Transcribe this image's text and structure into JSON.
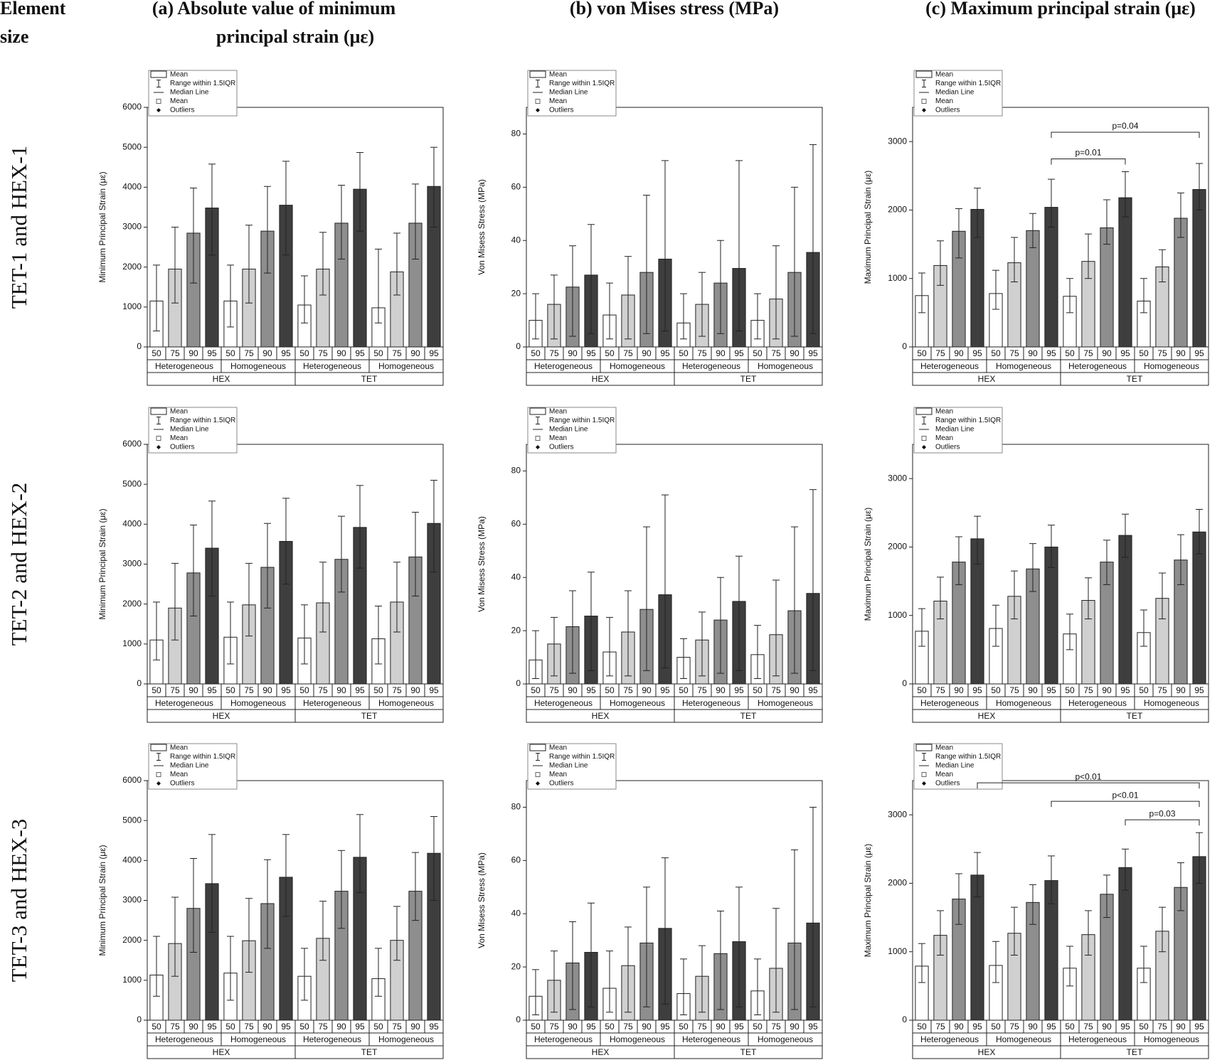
{
  "figure": {
    "corner": [
      "Element",
      "size"
    ],
    "columns": [
      [
        "(a) Absolute value of minimum",
        "principal strain (με)"
      ],
      [
        "(b) von Mises stress (MPa)"
      ],
      [
        "(c) Maximum principal strain (με)"
      ]
    ],
    "rows": [
      "TET-1 and HEX-1",
      "TET-2 and HEX-2",
      "TET-3 and HEX-3"
    ]
  },
  "chart_data": [
    {
      "type": "bar",
      "y_label": "Minimum Principal Strain (με)",
      "categories": [
        "50",
        "75",
        "90",
        "95",
        "50",
        "75",
        "90",
        "95",
        "50",
        "75",
        "90",
        "95",
        "50",
        "75",
        "90",
        "95"
      ],
      "groups": [
        "Heterogeneous",
        "Homogeneous",
        "Heterogeneous",
        "Homogeneous"
      ],
      "supergroups": [
        "HEX",
        "TET"
      ],
      "legend": [
        "Mean",
        "Range within 1.5IQR",
        "Median Line",
        "Mean",
        "Outliers"
      ],
      "bar_colors": [
        "#ffffff",
        "#d0d0d0",
        "#8e8e8e",
        "#3e3e3e"
      ],
      "values": [
        1150,
        1950,
        2850,
        3480,
        1150,
        1950,
        2900,
        3550,
        1050,
        1950,
        3100,
        3950,
        980,
        1880,
        3100,
        4020
      ],
      "whisker_high": [
        2050,
        3000,
        3980,
        4580,
        2050,
        3050,
        4020,
        4650,
        1780,
        2870,
        4050,
        4870,
        2450,
        2850,
        4080,
        5000
      ],
      "whisker_low": [
        400,
        1100,
        1600,
        2300,
        500,
        1100,
        1850,
        2300,
        600,
        1300,
        2200,
        2900,
        600,
        1300,
        2200,
        3000
      ],
      "ylim": [
        0,
        6000
      ],
      "yticks": [
        0,
        1000,
        2000,
        3000,
        4000,
        5000,
        6000
      ],
      "annotations": []
    },
    {
      "type": "bar",
      "y_label": "Von Misess Stress (MPa)",
      "categories": [
        "50",
        "75",
        "90",
        "95",
        "50",
        "75",
        "90",
        "95",
        "50",
        "75",
        "90",
        "95",
        "50",
        "75",
        "90",
        "95"
      ],
      "groups": [
        "Heterogeneous",
        "Homogeneous",
        "Heterogeneous",
        "Homogeneous"
      ],
      "supergroups": [
        "HEX",
        "TET"
      ],
      "legend": [
        "Mean",
        "Range within 1.5IQR",
        "Median Line",
        "Mean",
        "Outliers"
      ],
      "bar_colors": [
        "#ffffff",
        "#d0d0d0",
        "#8e8e8e",
        "#3e3e3e"
      ],
      "values": [
        10,
        16,
        22.5,
        27,
        12,
        19.5,
        28,
        33,
        9,
        16,
        24,
        29.5,
        10,
        18,
        28,
        35.5
      ],
      "whisker_high": [
        20,
        27,
        38,
        46,
        24,
        34,
        57,
        70,
        20,
        28,
        40,
        70,
        20,
        38,
        60,
        76
      ],
      "whisker_low": [
        3,
        3,
        4,
        5,
        3,
        3,
        5,
        6,
        3,
        4,
        5,
        6,
        3,
        3,
        4,
        5
      ],
      "ylim": [
        0,
        90
      ],
      "yticks": [
        0,
        20,
        40,
        60,
        80
      ],
      "annotations": []
    },
    {
      "type": "bar",
      "y_label": "Maximum Principal Strain (με)",
      "categories": [
        "50",
        "75",
        "90",
        "95",
        "50",
        "75",
        "90",
        "95",
        "50",
        "75",
        "90",
        "95",
        "50",
        "75",
        "90",
        "95"
      ],
      "groups": [
        "Heterogeneous",
        "Homogeneous",
        "Heterogeneous",
        "Homogeneous"
      ],
      "supergroups": [
        "HEX",
        "TET"
      ],
      "legend": [
        "Mean",
        "Range within 1.5IQR",
        "Median Line",
        "Mean",
        "Outliers"
      ],
      "bar_colors": [
        "#ffffff",
        "#d0d0d0",
        "#8e8e8e",
        "#3e3e3e"
      ],
      "values": [
        750,
        1190,
        1690,
        2010,
        780,
        1230,
        1700,
        2040,
        740,
        1250,
        1740,
        2180,
        670,
        1170,
        1880,
        2300
      ],
      "whisker_high": [
        1080,
        1550,
        2020,
        2320,
        1120,
        1600,
        1950,
        2450,
        1000,
        1650,
        2150,
        2560,
        1000,
        1420,
        2250,
        2680
      ],
      "whisker_low": [
        500,
        900,
        1300,
        1600,
        550,
        950,
        1450,
        1750,
        500,
        1000,
        1500,
        1900,
        500,
        950,
        1600,
        2000
      ],
      "ylim": [
        0,
        3500
      ],
      "yticks": [
        0,
        1000,
        2000,
        3000
      ],
      "annotations": [
        {
          "text": "p=0.04",
          "from": 7,
          "to": 15
        },
        {
          "text": "p=0.01",
          "from": 7,
          "to": 11
        }
      ]
    },
    {
      "type": "bar",
      "y_label": "Minimum Principal Strain (με)",
      "categories": [
        "50",
        "75",
        "90",
        "95",
        "50",
        "75",
        "90",
        "95",
        "50",
        "75",
        "90",
        "95",
        "50",
        "75",
        "90",
        "95"
      ],
      "groups": [
        "Heterogeneous",
        "Homogeneous",
        "Heterogeneous",
        "Homogeneous"
      ],
      "supergroups": [
        "HEX",
        "TET"
      ],
      "legend": [
        "Mean",
        "Range within 1.5IQR",
        "Median Line",
        "Mean",
        "Outliers"
      ],
      "bar_colors": [
        "#ffffff",
        "#d0d0d0",
        "#8e8e8e",
        "#3e3e3e"
      ],
      "values": [
        1100,
        1900,
        2780,
        3400,
        1170,
        1980,
        2920,
        3570,
        1150,
        2030,
        3120,
        3920,
        1130,
        2050,
        3180,
        4020
      ],
      "whisker_high": [
        2050,
        3020,
        3980,
        4580,
        2050,
        3020,
        4020,
        4650,
        1980,
        3050,
        4200,
        4970,
        1950,
        3050,
        4300,
        5100
      ],
      "whisker_low": [
        600,
        1100,
        1700,
        2200,
        500,
        1200,
        1900,
        2500,
        500,
        1300,
        2300,
        2900,
        500,
        1300,
        2200,
        2800
      ],
      "ylim": [
        0,
        6000
      ],
      "yticks": [
        0,
        1000,
        2000,
        3000,
        4000,
        5000,
        6000
      ],
      "annotations": []
    },
    {
      "type": "bar",
      "y_label": "Von Misess Stress (MPa)",
      "categories": [
        "50",
        "75",
        "90",
        "95",
        "50",
        "75",
        "90",
        "95",
        "50",
        "75",
        "90",
        "95",
        "50",
        "75",
        "90",
        "95"
      ],
      "groups": [
        "Heterogeneous",
        "Homogeneous",
        "Heterogeneous",
        "Homogeneous"
      ],
      "supergroups": [
        "HEX",
        "TET"
      ],
      "legend": [
        "Mean",
        "Range within 1.5IQR",
        "Median Line",
        "Mean",
        "Outliers"
      ],
      "bar_colors": [
        "#ffffff",
        "#d0d0d0",
        "#8e8e8e",
        "#3e3e3e"
      ],
      "values": [
        9,
        15,
        21.5,
        25.5,
        12,
        19.5,
        28,
        33.5,
        10,
        16.5,
        24,
        31,
        11,
        18.5,
        27.5,
        34
      ],
      "whisker_high": [
        20,
        25,
        35,
        42,
        25,
        35,
        59,
        71,
        17,
        27,
        40,
        48,
        22,
        39,
        59,
        73
      ],
      "whisker_low": [
        2,
        3,
        4,
        5,
        3,
        3,
        5,
        6,
        2,
        3,
        4,
        5,
        2,
        3,
        4,
        5
      ],
      "ylim": [
        0,
        90
      ],
      "yticks": [
        0,
        20,
        40,
        60,
        80
      ],
      "annotations": []
    },
    {
      "type": "bar",
      "y_label": "Maximum Principal Strain (με)",
      "categories": [
        "50",
        "75",
        "90",
        "95",
        "50",
        "75",
        "90",
        "95",
        "50",
        "75",
        "90",
        "95",
        "50",
        "75",
        "90",
        "95"
      ],
      "groups": [
        "Heterogeneous",
        "Homogeneous",
        "Heterogeneous",
        "Homogeneous"
      ],
      "supergroups": [
        "HEX",
        "TET"
      ],
      "legend": [
        "Mean",
        "Range within 1.5IQR",
        "Median Line",
        "Mean",
        "Outliers"
      ],
      "bar_colors": [
        "#ffffff",
        "#d0d0d0",
        "#8e8e8e",
        "#3e3e3e"
      ],
      "values": [
        770,
        1210,
        1780,
        2120,
        810,
        1280,
        1680,
        2000,
        730,
        1220,
        1780,
        2170,
        750,
        1250,
        1810,
        2220
      ],
      "whisker_high": [
        1100,
        1560,
        2150,
        2450,
        1150,
        1650,
        2050,
        2320,
        1020,
        1550,
        2100,
        2480,
        1080,
        1620,
        2180,
        2550
      ],
      "whisker_low": [
        550,
        950,
        1450,
        1750,
        550,
        950,
        1350,
        1700,
        500,
        950,
        1450,
        1850,
        550,
        950,
        1450,
        1900
      ],
      "ylim": [
        0,
        3500
      ],
      "yticks": [
        0,
        1000,
        2000,
        3000
      ],
      "annotations": []
    },
    {
      "type": "bar",
      "y_label": "Minimum Principal Strain (με)",
      "categories": [
        "50",
        "75",
        "90",
        "95",
        "50",
        "75",
        "90",
        "95",
        "50",
        "75",
        "90",
        "95",
        "50",
        "75",
        "90",
        "95"
      ],
      "groups": [
        "Heterogeneous",
        "Homogeneous",
        "Heterogeneous",
        "Homogeneous"
      ],
      "supergroups": [
        "HEX",
        "TET"
      ],
      "legend": [
        "Mean",
        "Range within 1.5IQR",
        "Median Line",
        "Mean",
        "Outliers"
      ],
      "bar_colors": [
        "#ffffff",
        "#d0d0d0",
        "#8e8e8e",
        "#3e3e3e"
      ],
      "values": [
        1130,
        1920,
        2800,
        3420,
        1180,
        1990,
        2920,
        3580,
        1100,
        2050,
        3230,
        4080,
        1040,
        2000,
        3230,
        4180
      ],
      "whisker_high": [
        2100,
        3080,
        4050,
        4650,
        2100,
        3050,
        4020,
        4650,
        1800,
        2980,
        4250,
        5150,
        1800,
        2850,
        4200,
        5100
      ],
      "whisker_low": [
        600,
        1100,
        1700,
        2200,
        500,
        1200,
        1800,
        2600,
        500,
        1500,
        2300,
        3200,
        600,
        1500,
        2500,
        3000
      ],
      "ylim": [
        0,
        6000
      ],
      "yticks": [
        0,
        1000,
        2000,
        3000,
        4000,
        5000,
        6000
      ],
      "annotations": []
    },
    {
      "type": "bar",
      "y_label": "Von Misess Stress (MPa)",
      "categories": [
        "50",
        "75",
        "90",
        "95",
        "50",
        "75",
        "90",
        "95",
        "50",
        "75",
        "90",
        "95",
        "50",
        "75",
        "90",
        "95"
      ],
      "groups": [
        "Heterogeneous",
        "Homogeneous",
        "Heterogeneous",
        "Homogeneous"
      ],
      "supergroups": [
        "HEX",
        "TET"
      ],
      "legend": [
        "Mean",
        "Range within 1.5IQR",
        "Median Line",
        "Mean",
        "Outliers"
      ],
      "bar_colors": [
        "#ffffff",
        "#d0d0d0",
        "#8e8e8e",
        "#3e3e3e"
      ],
      "values": [
        9,
        15,
        21.5,
        25.5,
        12,
        20.5,
        29,
        34.5,
        10,
        16.5,
        25,
        29.5,
        11,
        19.5,
        29,
        36.5
      ],
      "whisker_high": [
        19,
        26,
        37,
        44,
        26,
        35,
        50,
        61,
        23,
        28,
        41,
        50,
        23,
        42,
        64,
        80
      ],
      "whisker_low": [
        2,
        3,
        4,
        5,
        3,
        3,
        5,
        6,
        2,
        3,
        4,
        5,
        2,
        3,
        4,
        5
      ],
      "ylim": [
        0,
        90
      ],
      "yticks": [
        0,
        20,
        40,
        60,
        80
      ],
      "annotations": []
    },
    {
      "type": "bar",
      "y_label": "Maximum Principal Strain (με)",
      "categories": [
        "50",
        "75",
        "90",
        "95",
        "50",
        "75",
        "90",
        "95",
        "50",
        "75",
        "90",
        "95",
        "50",
        "75",
        "90",
        "95"
      ],
      "groups": [
        "Heterogeneous",
        "Homogeneous",
        "Heterogeneous",
        "Homogeneous"
      ],
      "supergroups": [
        "HEX",
        "TET"
      ],
      "legend": [
        "Mean",
        "Range within 1.5IQR",
        "Median Line",
        "Mean",
        "Outliers"
      ],
      "bar_colors": [
        "#ffffff",
        "#d0d0d0",
        "#8e8e8e",
        "#3e3e3e"
      ],
      "values": [
        790,
        1240,
        1770,
        2120,
        800,
        1270,
        1720,
        2040,
        760,
        1250,
        1840,
        2230,
        760,
        1300,
        1940,
        2390
      ],
      "whisker_high": [
        1120,
        1600,
        2140,
        2450,
        1150,
        1650,
        1980,
        2400,
        1080,
        1600,
        2120,
        2500,
        1080,
        1650,
        2300,
        2740
      ],
      "whisker_low": [
        550,
        950,
        1400,
        1800,
        550,
        950,
        1400,
        1700,
        500,
        950,
        1500,
        1900,
        550,
        1000,
        1600,
        2000
      ],
      "ylim": [
        0,
        3500
      ],
      "yticks": [
        0,
        1000,
        2000,
        3000
      ],
      "annotations": [
        {
          "text": "p<0.01",
          "from": 3,
          "to": 15
        },
        {
          "text": "p<0.01",
          "from": 7,
          "to": 15
        },
        {
          "text": "p=0.03",
          "from": 11,
          "to": 15
        }
      ]
    }
  ]
}
